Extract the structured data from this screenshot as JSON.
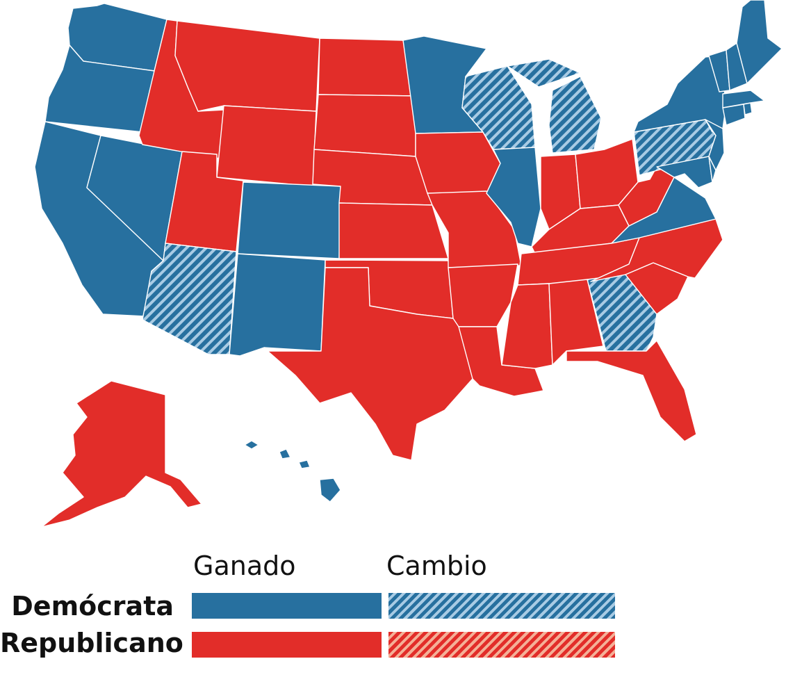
{
  "colors": {
    "democrat": "#27709f",
    "republican": "#e22d29",
    "democrat_hatch_light": "#a8cbe4",
    "republican_hatch_light": "#f4b097",
    "border": "#ffffff"
  },
  "legend": {
    "col_won": "Ganado",
    "col_flip": "Cambio",
    "row_dem": "Demócrata",
    "row_rep": "Republicano"
  },
  "states": [
    {
      "id": "WA",
      "party": "dem",
      "flip": false
    },
    {
      "id": "OR",
      "party": "dem",
      "flip": false
    },
    {
      "id": "CA",
      "party": "dem",
      "flip": false
    },
    {
      "id": "NV",
      "party": "dem",
      "flip": false
    },
    {
      "id": "ID",
      "party": "rep",
      "flip": false
    },
    {
      "id": "MT",
      "party": "rep",
      "flip": false
    },
    {
      "id": "WY",
      "party": "rep",
      "flip": false
    },
    {
      "id": "UT",
      "party": "rep",
      "flip": false
    },
    {
      "id": "AZ",
      "party": "dem",
      "flip": true
    },
    {
      "id": "CO",
      "party": "dem",
      "flip": false
    },
    {
      "id": "NM",
      "party": "dem",
      "flip": false
    },
    {
      "id": "ND",
      "party": "rep",
      "flip": false
    },
    {
      "id": "SD",
      "party": "rep",
      "flip": false
    },
    {
      "id": "NE",
      "party": "rep",
      "flip": false
    },
    {
      "id": "KS",
      "party": "rep",
      "flip": false
    },
    {
      "id": "OK",
      "party": "rep",
      "flip": false
    },
    {
      "id": "TX",
      "party": "rep",
      "flip": false
    },
    {
      "id": "MN",
      "party": "dem",
      "flip": false
    },
    {
      "id": "IA",
      "party": "rep",
      "flip": false
    },
    {
      "id": "MO",
      "party": "rep",
      "flip": false
    },
    {
      "id": "AR",
      "party": "rep",
      "flip": false
    },
    {
      "id": "LA",
      "party": "rep",
      "flip": false
    },
    {
      "id": "WI",
      "party": "dem",
      "flip": true
    },
    {
      "id": "IL",
      "party": "dem",
      "flip": false
    },
    {
      "id": "MI",
      "party": "dem",
      "flip": true
    },
    {
      "id": "IN",
      "party": "rep",
      "flip": false
    },
    {
      "id": "OH",
      "party": "rep",
      "flip": false
    },
    {
      "id": "KY",
      "party": "rep",
      "flip": false
    },
    {
      "id": "TN",
      "party": "rep",
      "flip": false
    },
    {
      "id": "MS",
      "party": "rep",
      "flip": false
    },
    {
      "id": "AL",
      "party": "rep",
      "flip": false
    },
    {
      "id": "GA",
      "party": "dem",
      "flip": true
    },
    {
      "id": "FL",
      "party": "rep",
      "flip": false
    },
    {
      "id": "SC",
      "party": "rep",
      "flip": false
    },
    {
      "id": "NC",
      "party": "rep",
      "flip": false
    },
    {
      "id": "VA",
      "party": "dem",
      "flip": false
    },
    {
      "id": "WV",
      "party": "rep",
      "flip": false
    },
    {
      "id": "PA",
      "party": "dem",
      "flip": true
    },
    {
      "id": "NY",
      "party": "dem",
      "flip": false
    },
    {
      "id": "NJ",
      "party": "dem",
      "flip": false
    },
    {
      "id": "MD",
      "party": "dem",
      "flip": false
    },
    {
      "id": "DE",
      "party": "dem",
      "flip": false
    },
    {
      "id": "CT",
      "party": "dem",
      "flip": false
    },
    {
      "id": "RI",
      "party": "dem",
      "flip": false
    },
    {
      "id": "MA",
      "party": "dem",
      "flip": false
    },
    {
      "id": "VT",
      "party": "dem",
      "flip": false
    },
    {
      "id": "NH",
      "party": "dem",
      "flip": false
    },
    {
      "id": "ME",
      "party": "dem",
      "flip": false
    },
    {
      "id": "AK",
      "party": "rep",
      "flip": false
    },
    {
      "id": "HI",
      "party": "dem",
      "flip": false
    }
  ]
}
